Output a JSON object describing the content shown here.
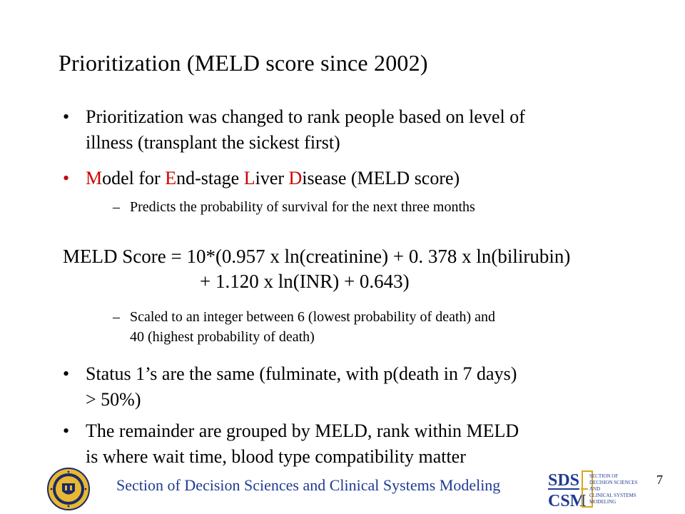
{
  "slide": {
    "title": "Prioritization  (MELD score since 2002)",
    "bullets": {
      "b1_line1": "Prioritization was changed to rank people based on level of",
      "b1_line2": "illness (transplant the sickest first)",
      "b2_M": "M",
      "b2_odel": "odel for ",
      "b2_E": "E",
      "b2_nd": "nd-stage ",
      "b2_L": "L",
      "b2_iver": "iver ",
      "b2_D": "D",
      "b2_isease": "isease (MELD score)",
      "b2_sub": "Predicts the probability of survival for the next three months",
      "b3_line1": "Status 1’s are the same (fulminate, with p(death in 7 days)",
      "b3_line2": "> 50%)",
      "b4_line1": "The remainder are grouped by MELD, rank within MELD",
      "b4_line2": "is where wait time, blood type compatibility matter"
    },
    "formula": {
      "line1": "MELD Score = 10*(0.957 x ln(creatinine) + 0. 378 x ln(bilirubin)",
      "line2": "+ 1.120 x ln(INR) + 0.643)"
    },
    "scaled_note": {
      "line1": "Scaled to an integer between 6  (lowest probability of death) and",
      "line2": "40 (highest probability of death)"
    },
    "bullet_glyph": "•",
    "dash_glyph": "–"
  },
  "footer": {
    "org": "Section of Decision Sciences and Clinical Systems Modeling",
    "page_number": "7",
    "logo": {
      "sds": "SDS",
      "csm": "CSM",
      "w1": "SECTION OF",
      "w2": "DECISION SCIENCES",
      "w3": "AND",
      "w4": "CLINICAL SYSTEMS",
      "w5": "MODELING"
    }
  },
  "colors": {
    "accent_red": "#cc0000",
    "footer_blue": "#1f3a93",
    "seal_gold": "#e8b830",
    "seal_navy": "#1b2a6b",
    "logo_blue": "#1f3a93",
    "logo_gold": "#d9a520"
  },
  "icons": {
    "seal": "university-seal-icon",
    "logo": "sds-csm-logo-icon"
  }
}
